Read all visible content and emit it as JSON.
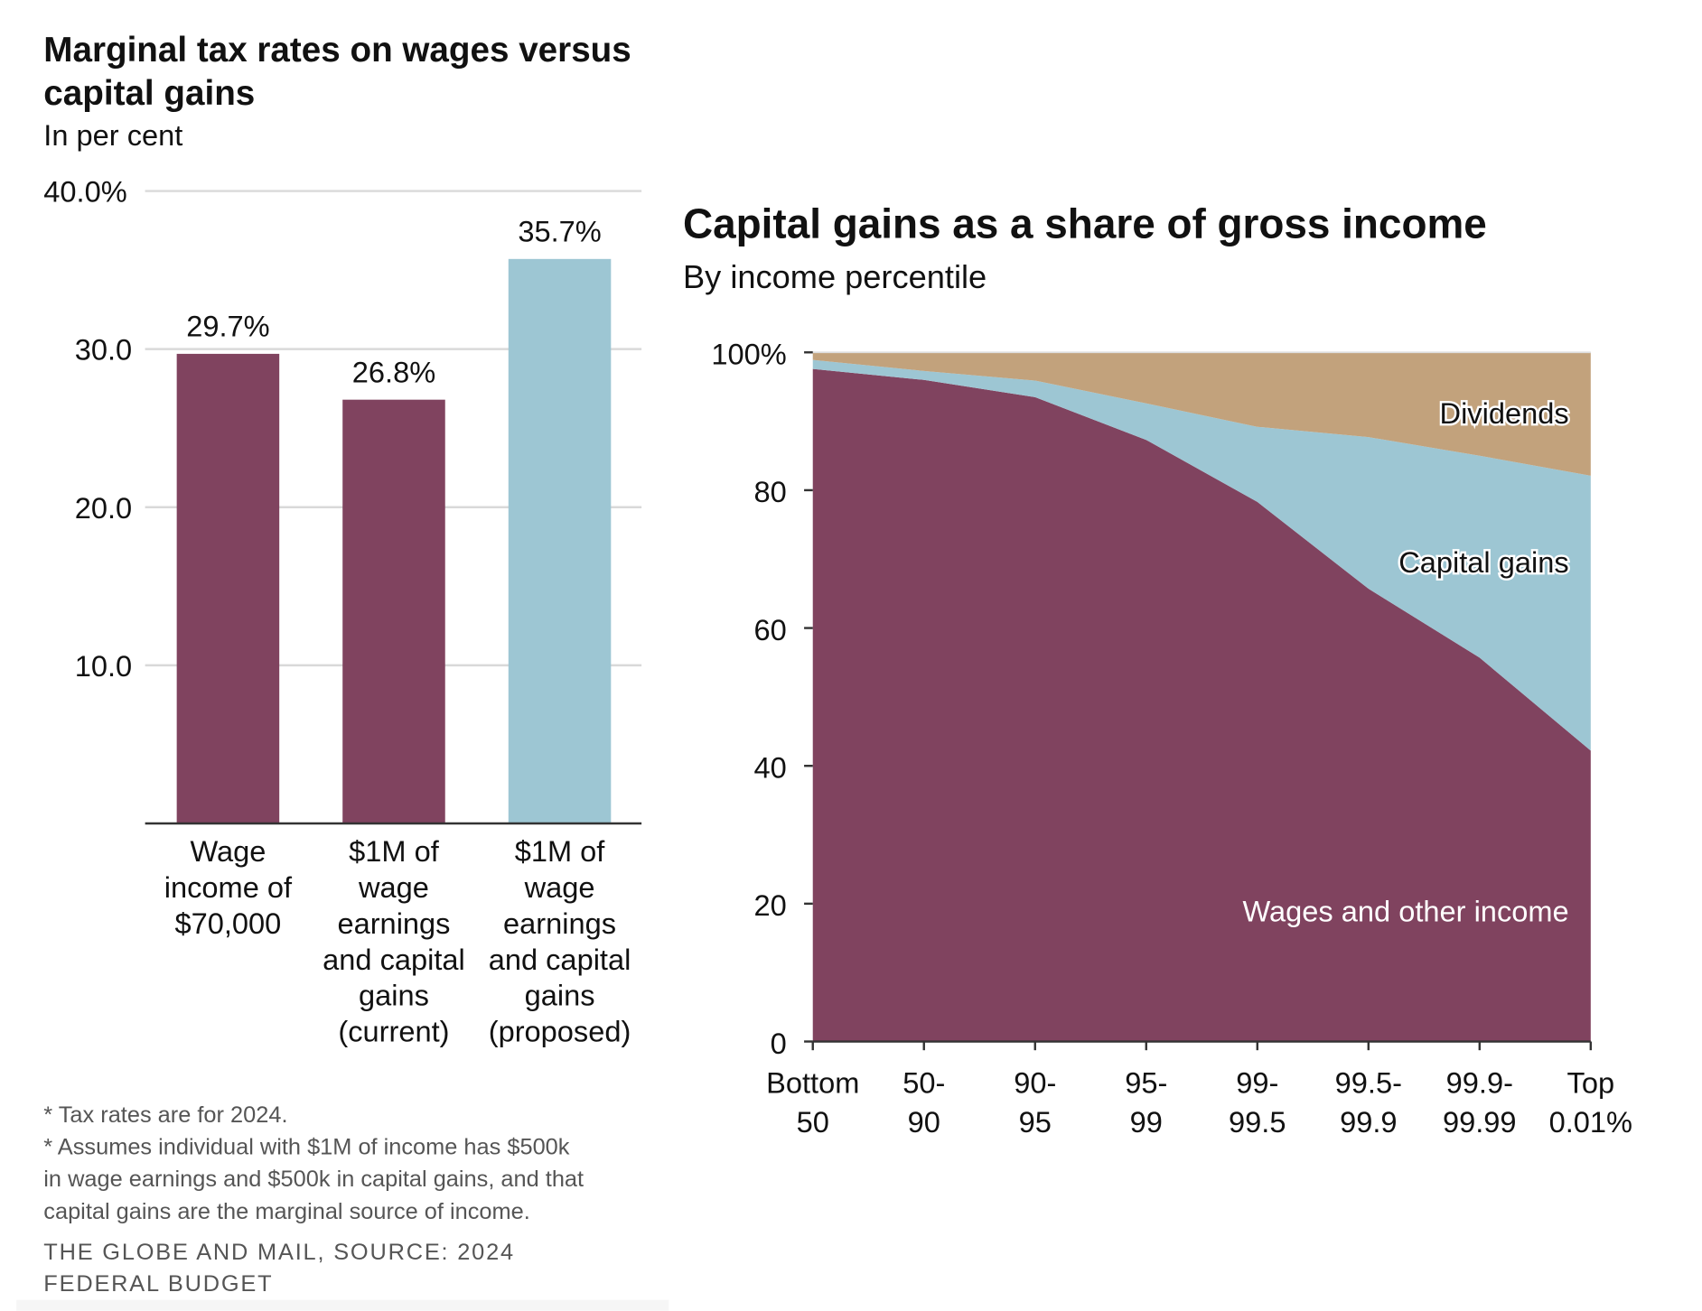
{
  "chart_data": [
    {
      "type": "bar",
      "title": "Marginal tax rates on wages versus capital gains",
      "subtitle": "In per cent",
      "categories": [
        [
          "Wage",
          "income of",
          "$70,000"
        ],
        [
          "$1M of",
          "wage",
          "earnings",
          "and capital",
          "gains",
          "(current)"
        ],
        [
          "$1M of",
          "wage",
          "earnings",
          "and capital",
          "gains",
          "(proposed)"
        ]
      ],
      "values": [
        29.7,
        26.8,
        35.7
      ],
      "data_labels": [
        "29.7%",
        "26.8%",
        "35.7%"
      ],
      "colors": [
        "#80435f",
        "#80435f",
        "#9dc6d3"
      ],
      "ylim": [
        0,
        40
      ],
      "yticks": [
        10,
        20,
        30,
        40
      ],
      "ytick_labels": [
        "10.0",
        "20.0",
        "30.0",
        "40.0%"
      ],
      "grid": true,
      "notes": [
        "* Tax rates are for 2024.",
        "* Assumes individual with $1M of income has $500k",
        "in wage earnings and $500k in capital gains, and that",
        "capital gains are the marginal source of income."
      ],
      "source": [
        "THE GLOBE AND MAIL, SOURCE: 2024",
        "FEDERAL BUDGET"
      ]
    },
    {
      "type": "area",
      "stacked": true,
      "title": "Capital gains as a share of gross income",
      "subtitle": "By income percentile",
      "categories": [
        [
          "Bottom",
          "50"
        ],
        [
          "50-",
          "90"
        ],
        [
          "90-",
          "95"
        ],
        [
          "95-",
          "99"
        ],
        [
          "99-",
          "99.5"
        ],
        [
          "99.5-",
          "99.9"
        ],
        [
          "99.9-",
          "99.99"
        ],
        [
          "Top",
          "0.01%"
        ]
      ],
      "series": [
        {
          "name": "Wages and other income",
          "color": "#80435f",
          "values": [
            97.6,
            96.0,
            93.5,
            87.3,
            78.3,
            65.7,
            55.7,
            42.2
          ]
        },
        {
          "name": "Capital gains",
          "color": "#9dc6d3",
          "values": [
            1.3,
            1.3,
            2.4,
            5.3,
            10.9,
            22.0,
            29.3,
            39.9
          ]
        },
        {
          "name": "Dividends",
          "color": "#c2a27c",
          "values": [
            1.1,
            2.7,
            4.1,
            7.4,
            10.8,
            12.3,
            15.0,
            17.9
          ]
        }
      ],
      "ylim": [
        0,
        100
      ],
      "yticks": [
        0,
        20,
        40,
        60,
        80,
        100
      ],
      "ytick_labels": [
        "0",
        "20",
        "40",
        "60",
        "80",
        "100%"
      ]
    }
  ]
}
